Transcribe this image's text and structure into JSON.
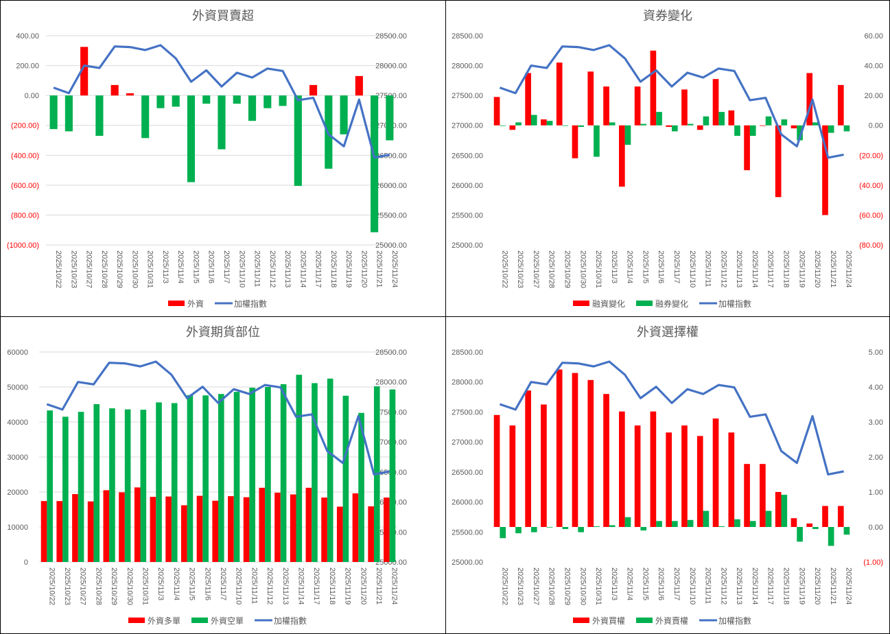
{
  "colors": {
    "red": "#ff0000",
    "green": "#00b050",
    "line": "#4472c4",
    "text": "#595959",
    "neg_text": "#ff0000",
    "grid": "#d9d9d9"
  },
  "dates": [
    "2025/10/22",
    "2025/10/23",
    "2025/10/27",
    "2025/10/28",
    "2025/10/29",
    "2025/10/30",
    "2025/10/31",
    "2025/11/3",
    "2025/11/4",
    "2025/11/5",
    "2025/11/6",
    "2025/11/7",
    "2025/11/10",
    "2025/11/11",
    "2025/11/12",
    "2025/11/13",
    "2025/11/14",
    "2025/11/17",
    "2025/11/18",
    "2025/11/19",
    "2025/11/20",
    "2025/11/21",
    "2025/11/24"
  ],
  "index_values": [
    27630,
    27540,
    28000,
    27960,
    28320,
    28310,
    28260,
    28340,
    28120,
    27730,
    27920,
    27650,
    27880,
    27800,
    27950,
    27910,
    27420,
    27460,
    26850,
    26650,
    27430,
    26460,
    26510
  ],
  "chart_data": [
    {
      "type": "bar",
      "title": "外資買賣超",
      "left_ticks": [
        "400.00",
        "200.00",
        "0.00",
        "(200.00)",
        "(400.00)",
        "(600.00)",
        "(800.00)",
        "(1000.00)"
      ],
      "right_ticks": [
        "28500.00",
        "28000.00",
        "27500.00",
        "27000.00",
        "26500.00",
        "26000.00",
        "25500.00",
        "25000.00"
      ],
      "ylim_left": [
        -1000,
        400
      ],
      "ylim_right": [
        25000,
        28500
      ],
      "grid": true,
      "legend_position": "bottom",
      "series": [
        {
          "name": "外資",
          "axis": "left",
          "kind": "bar",
          "color_rule": "sign",
          "values": [
            -225,
            -240,
            325,
            -270,
            70,
            15,
            -285,
            -85,
            -75,
            -580,
            -55,
            -360,
            -55,
            -170,
            -85,
            -70,
            -605,
            70,
            -490,
            -260,
            130,
            -915,
            -300
          ]
        },
        {
          "name": "加權指數",
          "axis": "right",
          "kind": "line"
        }
      ]
    },
    {
      "type": "bar",
      "title": "資券變化",
      "left_ticks": [
        "28500.00",
        "28000.00",
        "27500.00",
        "27000.00",
        "26500.00",
        "26000.00",
        "25500.00",
        "25000.00"
      ],
      "right_ticks": [
        "60.00",
        "40.00",
        "20.00",
        "0.00",
        "(20.00)",
        "(40.00)",
        "(60.00)",
        "(80.00)"
      ],
      "ylim_left": [
        25000,
        28500
      ],
      "ylim_right": [
        -80,
        60
      ],
      "grid": false,
      "legend_position": "bottom",
      "series": [
        {
          "name": "融資變化",
          "axis": "right",
          "kind": "bar",
          "color": "#ff0000",
          "values": [
            19,
            -3,
            35,
            4,
            42,
            -22,
            36,
            26,
            -41,
            26,
            50,
            -1,
            24,
            -3,
            31,
            10,
            -30,
            0,
            -48,
            -2,
            35,
            -60,
            27
          ]
        },
        {
          "name": "融券變化",
          "axis": "right",
          "kind": "bar",
          "color": "#00b050",
          "values": [
            0,
            2,
            7,
            3,
            0,
            -1,
            -21,
            2,
            -13,
            1,
            9,
            -4,
            1,
            6,
            9,
            -7,
            -7,
            6,
            4,
            -10,
            2,
            -5,
            -4
          ]
        },
        {
          "name": "加權指數",
          "axis": "left",
          "kind": "line"
        }
      ]
    },
    {
      "type": "bar",
      "title": "外資期貨部位",
      "left_ticks": [
        "60000",
        "50000",
        "40000",
        "30000",
        "20000",
        "10000",
        "0"
      ],
      "right_ticks": [
        "28500.00",
        "28000.00",
        "27500.00",
        "27000.00",
        "26500.00",
        "26000.00",
        "25500.00",
        "25000.00"
      ],
      "ylim_left": [
        0,
        60000
      ],
      "ylim_right": [
        25000,
        28500
      ],
      "grid": true,
      "legend_position": "bottom",
      "series": [
        {
          "name": "外資多單",
          "axis": "left",
          "kind": "bar",
          "color": "#ff0000",
          "values": [
            17400,
            17400,
            19400,
            17300,
            20500,
            19900,
            21300,
            18600,
            18700,
            16200,
            18900,
            17500,
            18800,
            18500,
            21200,
            19800,
            19300,
            21200,
            18400,
            15800,
            19600,
            15900,
            18400
          ]
        },
        {
          "name": "外資空單",
          "axis": "left",
          "kind": "bar",
          "color": "#00b050",
          "values": [
            43300,
            41500,
            42900,
            45100,
            43900,
            43600,
            43500,
            45600,
            45400,
            47700,
            47600,
            48000,
            48600,
            49800,
            50000,
            50800,
            53500,
            51100,
            52400,
            47500,
            42600,
            50200,
            49300
          ]
        },
        {
          "name": "加權指數",
          "axis": "right",
          "kind": "line"
        }
      ]
    },
    {
      "type": "bar",
      "title": "外資選擇權",
      "left_ticks": [
        "28500.00",
        "28000.00",
        "27500.00",
        "27000.00",
        "26500.00",
        "26000.00",
        "25500.00",
        "25000.00"
      ],
      "right_ticks": [
        "5.00",
        "4.00",
        "3.00",
        "2.00",
        "1.00",
        "0.00",
        "(1.00)"
      ],
      "ylim_left": [
        25000,
        28500
      ],
      "ylim_right": [
        -1,
        5
      ],
      "grid": false,
      "legend_position": "bottom",
      "series": [
        {
          "name": "外資買權",
          "axis": "right",
          "kind": "bar",
          "color": "#ff0000",
          "values": [
            3.2,
            2.9,
            3.9,
            3.5,
            4.5,
            4.4,
            4.2,
            3.8,
            3.3,
            2.9,
            3.3,
            2.7,
            2.9,
            2.6,
            3.1,
            2.7,
            1.8,
            1.8,
            1.0,
            0.25,
            0.1,
            0.6,
            0.6
          ]
        },
        {
          "name": "外資賣權",
          "axis": "right",
          "kind": "bar",
          "color": "#00b050",
          "values": [
            -0.32,
            -0.18,
            -0.15,
            0,
            -0.06,
            -0.15,
            0.02,
            0.05,
            0.28,
            -0.1,
            0.17,
            0.17,
            0.2,
            0.46,
            0.02,
            0.22,
            0.17,
            0.46,
            0.92,
            -0.42,
            -0.06,
            -0.54,
            -0.22
          ]
        },
        {
          "name": "加權指數",
          "axis": "left",
          "kind": "line"
        }
      ]
    }
  ]
}
